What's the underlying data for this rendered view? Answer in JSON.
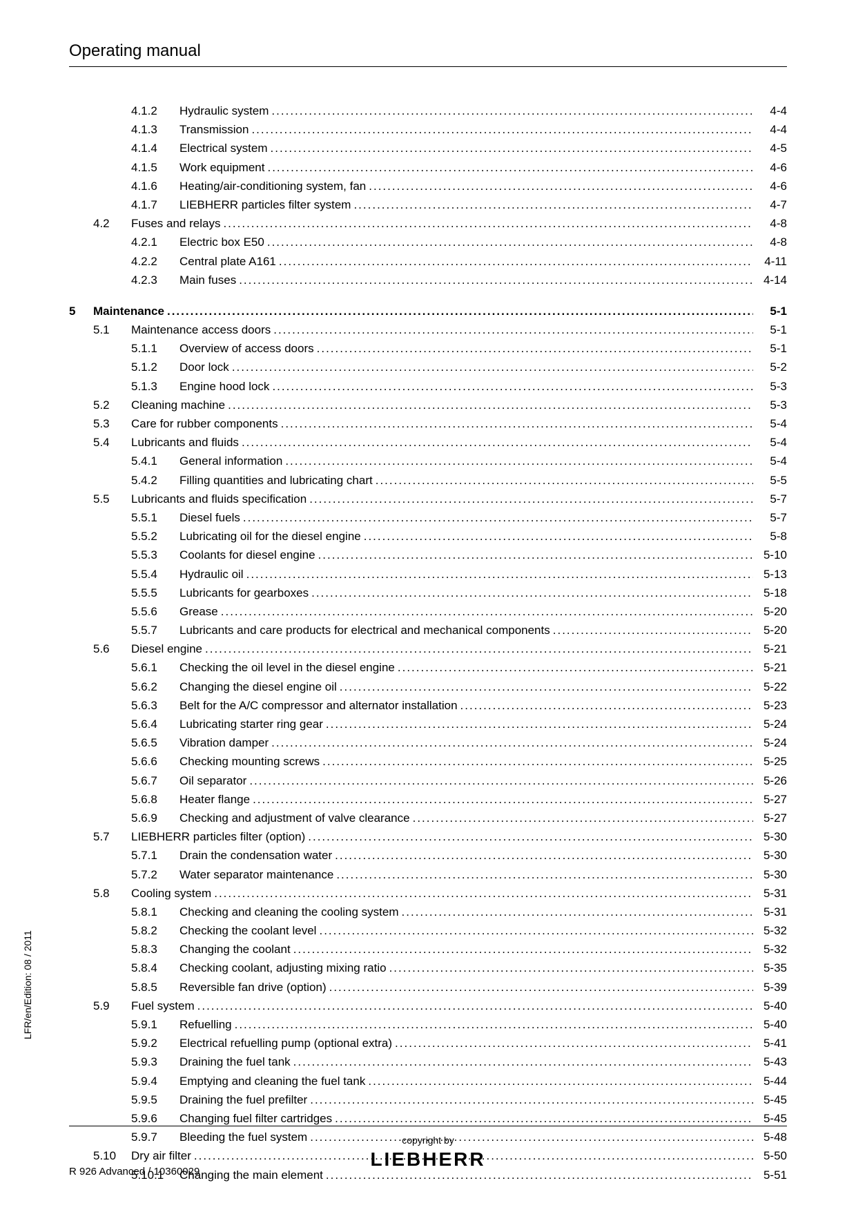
{
  "header": "Operating manual",
  "sideText": "LFR/en/Edition: 08 / 2011",
  "footerLeft": "R 926 Advanced / 10360029",
  "footerCopyright": "copyright by",
  "footerBrand": "LIEBHERR",
  "toc": [
    {
      "level": 2,
      "num": "4.1.2",
      "title": "Hydraulic system",
      "page": "4-4"
    },
    {
      "level": 2,
      "num": "4.1.3",
      "title": "Transmission",
      "page": "4-4"
    },
    {
      "level": 2,
      "num": "4.1.4",
      "title": "Electrical system",
      "page": "4-5"
    },
    {
      "level": 2,
      "num": "4.1.5",
      "title": "Work equipment",
      "page": "4-6"
    },
    {
      "level": 2,
      "num": "4.1.6",
      "title": "Heating/air-conditioning system, fan",
      "page": "4-6"
    },
    {
      "level": 2,
      "num": "4.1.7",
      "title": "LIEBHERR particles filter system",
      "page": "4-7"
    },
    {
      "level": 1,
      "num": "4.2",
      "title": "Fuses and relays",
      "page": "4-8"
    },
    {
      "level": 2,
      "num": "4.2.1",
      "title": "Electric box E50",
      "page": "4-8"
    },
    {
      "level": 2,
      "num": "4.2.2",
      "title": "Central plate A161",
      "page": "4-11"
    },
    {
      "level": 2,
      "num": "4.2.3",
      "title": "Main fuses",
      "page": "4-14"
    },
    {
      "spacer": true
    },
    {
      "level": 0,
      "num": "5",
      "title": "Maintenance",
      "page": "5-1",
      "bold": true
    },
    {
      "level": 1,
      "num": "5.1",
      "title": "Maintenance access doors",
      "page": "5-1"
    },
    {
      "level": 2,
      "num": "5.1.1",
      "title": "Overview of access doors",
      "page": "5-1"
    },
    {
      "level": 2,
      "num": "5.1.2",
      "title": "Door lock",
      "page": "5-2"
    },
    {
      "level": 2,
      "num": "5.1.3",
      "title": "Engine hood lock",
      "page": "5-3"
    },
    {
      "level": 1,
      "num": "5.2",
      "title": "Cleaning machine",
      "page": "5-3"
    },
    {
      "level": 1,
      "num": "5.3",
      "title": "Care for rubber components",
      "page": "5-4"
    },
    {
      "level": 1,
      "num": "5.4",
      "title": "Lubricants and fluids",
      "page": "5-4"
    },
    {
      "level": 2,
      "num": "5.4.1",
      "title": "General information",
      "page": "5-4"
    },
    {
      "level": 2,
      "num": "5.4.2",
      "title": "Filling quantities and lubricating chart",
      "page": "5-5"
    },
    {
      "level": 1,
      "num": "5.5",
      "title": "Lubricants and fluids specification",
      "page": "5-7"
    },
    {
      "level": 2,
      "num": "5.5.1",
      "title": "Diesel fuels",
      "page": "5-7"
    },
    {
      "level": 2,
      "num": "5.5.2",
      "title": "Lubricating oil for the diesel engine",
      "page": "5-8"
    },
    {
      "level": 2,
      "num": "5.5.3",
      "title": "Coolants for diesel engine",
      "page": "5-10"
    },
    {
      "level": 2,
      "num": "5.5.4",
      "title": "Hydraulic oil",
      "page": "5-13"
    },
    {
      "level": 2,
      "num": "5.5.5",
      "title": "Lubricants for gearboxes",
      "page": "5-18"
    },
    {
      "level": 2,
      "num": "5.5.6",
      "title": "Grease",
      "page": "5-20"
    },
    {
      "level": 2,
      "num": "5.5.7",
      "title": "Lubricants and care products for electrical and mechanical components",
      "page": "5-20"
    },
    {
      "level": 1,
      "num": "5.6",
      "title": "Diesel engine",
      "page": "5-21"
    },
    {
      "level": 2,
      "num": "5.6.1",
      "title": "Checking the oil level in the diesel engine",
      "page": "5-21"
    },
    {
      "level": 2,
      "num": "5.6.2",
      "title": "Changing the diesel engine oil",
      "page": "5-22"
    },
    {
      "level": 2,
      "num": "5.6.3",
      "title": "Belt for the A/C compressor and alternator installation",
      "page": "5-23"
    },
    {
      "level": 2,
      "num": "5.6.4",
      "title": "Lubricating starter ring gear",
      "page": "5-24"
    },
    {
      "level": 2,
      "num": "5.6.5",
      "title": "Vibration damper",
      "page": "5-24"
    },
    {
      "level": 2,
      "num": "5.6.6",
      "title": "Checking mounting screws",
      "page": "5-25"
    },
    {
      "level": 2,
      "num": "5.6.7",
      "title": "Oil separator",
      "page": "5-26"
    },
    {
      "level": 2,
      "num": "5.6.8",
      "title": "Heater flange",
      "page": "5-27"
    },
    {
      "level": 2,
      "num": "5.6.9",
      "title": "Checking and adjustment of valve clearance",
      "page": "5-27"
    },
    {
      "level": 1,
      "num": "5.7",
      "title": "LIEBHERR particles filter (option)",
      "page": "5-30"
    },
    {
      "level": 2,
      "num": "5.7.1",
      "title": "Drain the condensation water",
      "page": "5-30"
    },
    {
      "level": 2,
      "num": "5.7.2",
      "title": "Water separator maintenance",
      "page": "5-30"
    },
    {
      "level": 1,
      "num": "5.8",
      "title": "Cooling system",
      "page": "5-31"
    },
    {
      "level": 2,
      "num": "5.8.1",
      "title": "Checking and cleaning the cooling system",
      "page": "5-31"
    },
    {
      "level": 2,
      "num": "5.8.2",
      "title": "Checking the coolant level",
      "page": "5-32"
    },
    {
      "level": 2,
      "num": "5.8.3",
      "title": "Changing the coolant",
      "page": "5-32"
    },
    {
      "level": 2,
      "num": "5.8.4",
      "title": "Checking coolant, adjusting mixing ratio",
      "page": "5-35"
    },
    {
      "level": 2,
      "num": "5.8.5",
      "title": "Reversible fan drive (option)",
      "page": "5-39"
    },
    {
      "level": 1,
      "num": "5.9",
      "title": "Fuel system",
      "page": "5-40"
    },
    {
      "level": 2,
      "num": "5.9.1",
      "title": "Refuelling",
      "page": "5-40"
    },
    {
      "level": 2,
      "num": "5.9.2",
      "title": "Electrical refuelling pump (optional extra)",
      "page": "5-41"
    },
    {
      "level": 2,
      "num": "5.9.3",
      "title": "Draining the fuel tank",
      "page": "5-43"
    },
    {
      "level": 2,
      "num": "5.9.4",
      "title": "Emptying and cleaning the fuel tank",
      "page": "5-44"
    },
    {
      "level": 2,
      "num": "5.9.5",
      "title": "Draining the fuel prefilter",
      "page": "5-45"
    },
    {
      "level": 2,
      "num": "5.9.6",
      "title": "Changing fuel filter cartridges",
      "page": "5-45"
    },
    {
      "level": 2,
      "num": "5.9.7",
      "title": "Bleeding the fuel system",
      "page": "5-48"
    },
    {
      "level": 1,
      "num": "5.10",
      "title": "Dry air filter",
      "page": "5-50"
    },
    {
      "level": 2,
      "num": "5.10.1",
      "title": "Changing the main element",
      "page": "5-51"
    }
  ]
}
